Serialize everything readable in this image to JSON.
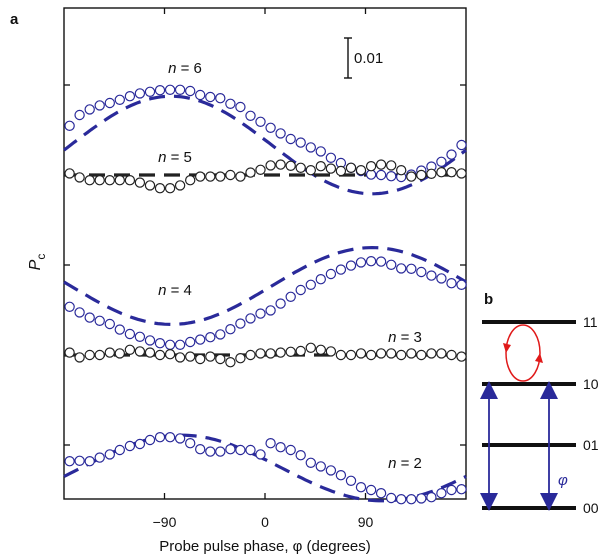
{
  "figure": {
    "panel_a_label": "a",
    "panel_b_label": "b"
  },
  "chart_data": [
    {
      "type": "scatter",
      "panel": "a",
      "xlabel": "Probe pulse phase, φ (degrees)",
      "ylabel": "Pc",
      "xlim": [
        -180,
        180
      ],
      "xticks": [
        -90,
        0,
        90
      ],
      "xtick_labels": [
        "−90",
        "0",
        "90"
      ],
      "scale_bar_label": "0.01",
      "grid": false,
      "colors": {
        "even_n": "#2a2a9a",
        "odd_n": "#222222"
      },
      "series": [
        {
          "name": "n = 6",
          "color": "#2a2a9a",
          "fit": "sinusoid",
          "fit_params": {
            "center": 0.8,
            "amp": 1.22,
            "peak_phase": -84
          },
          "x": [
            -175,
            -166,
            -157,
            -148,
            -139,
            -130,
            -121,
            -112,
            -103,
            -94,
            -85,
            -76,
            -67,
            -58,
            -49,
            -40,
            -31,
            -22,
            -13,
            -4,
            5,
            14,
            23,
            32,
            41,
            50,
            59,
            68,
            77,
            86,
            95,
            104,
            113,
            122,
            131,
            140,
            149,
            158,
            167,
            176
          ],
          "y": [
            1.28,
            1.55,
            1.69,
            1.79,
            1.85,
            1.93,
            2.02,
            2.09,
            2.13,
            2.17,
            2.18,
            2.18,
            2.15,
            2.05,
            2.0,
            1.97,
            1.83,
            1.75,
            1.53,
            1.38,
            1.23,
            1.09,
            0.95,
            0.86,
            0.74,
            0.64,
            0.48,
            0.35,
            0.23,
            0.15,
            0.06,
            0.05,
            0.02,
            0.0,
            0.06,
            0.16,
            0.26,
            0.38,
            0.56,
            0.8
          ]
        },
        {
          "name": "n = 5",
          "color": "#222222",
          "fit": "flat",
          "fit_params": {
            "center": 0.0
          },
          "x": [
            -175,
            -166,
            -157,
            -148,
            -139,
            -130,
            -121,
            -112,
            -103,
            -94,
            -85,
            -76,
            -67,
            -58,
            -49,
            -40,
            -31,
            -22,
            -13,
            -4,
            5,
            14,
            23,
            32,
            41,
            50,
            59,
            68,
            77,
            86,
            95,
            104,
            113,
            122,
            131,
            140,
            149,
            158,
            167,
            176
          ],
          "y": [
            0.04,
            -0.06,
            -0.13,
            -0.13,
            -0.13,
            -0.13,
            -0.13,
            -0.19,
            -0.26,
            -0.33,
            -0.33,
            -0.26,
            -0.13,
            -0.04,
            -0.04,
            -0.04,
            0.0,
            -0.04,
            0.06,
            0.13,
            0.24,
            0.26,
            0.23,
            0.18,
            0.12,
            0.22,
            0.16,
            0.1,
            0.18,
            0.12,
            0.22,
            0.26,
            0.24,
            0.12,
            -0.04,
            0.0,
            0.03,
            0.07,
            0.07,
            0.04
          ]
        },
        {
          "name": "n = 4",
          "color": "#2a2a9a",
          "fit": "sinusoid",
          "fit_params": {
            "center": 1.65,
            "amp": 0.96,
            "peak_phase": 96
          },
          "x": [
            -175,
            -166,
            -157,
            -148,
            -139,
            -130,
            -121,
            -112,
            -103,
            -94,
            -85,
            -76,
            -67,
            -58,
            -49,
            -40,
            -31,
            -22,
            -13,
            -4,
            5,
            14,
            23,
            32,
            41,
            50,
            59,
            68,
            77,
            86,
            95,
            104,
            113,
            122,
            131,
            140,
            149,
            158,
            167,
            176
          ],
          "y": [
            1.13,
            0.99,
            0.86,
            0.78,
            0.7,
            0.56,
            0.45,
            0.38,
            0.29,
            0.22,
            0.18,
            0.18,
            0.25,
            0.31,
            0.37,
            0.44,
            0.57,
            0.71,
            0.84,
            0.96,
            1.04,
            1.21,
            1.38,
            1.55,
            1.68,
            1.82,
            1.95,
            2.06,
            2.16,
            2.24,
            2.27,
            2.26,
            2.18,
            2.09,
            2.08,
            2.0,
            1.91,
            1.84,
            1.72,
            1.68
          ]
        },
        {
          "name": "n = 3",
          "color": "#222222",
          "fit": "flat",
          "fit_params": {
            "center": 0.0
          },
          "x": [
            -175,
            -166,
            -157,
            -148,
            -139,
            -130,
            -121,
            -112,
            -103,
            -94,
            -85,
            -76,
            -67,
            -58,
            -49,
            -40,
            -31,
            -22,
            -13,
            -4,
            5,
            14,
            23,
            32,
            41,
            50,
            59,
            68,
            77,
            86,
            95,
            104,
            113,
            122,
            131,
            140,
            149,
            158,
            167,
            176
          ],
          "y": [
            0.06,
            -0.06,
            0.0,
            0.0,
            0.06,
            0.04,
            0.13,
            0.09,
            0.06,
            0.0,
            0.02,
            -0.06,
            -0.04,
            -0.1,
            -0.04,
            -0.1,
            -0.18,
            -0.08,
            0.0,
            0.04,
            0.04,
            0.06,
            0.08,
            0.1,
            0.18,
            0.13,
            0.09,
            0.0,
            0.0,
            0.04,
            0.0,
            0.04,
            0.04,
            0.0,
            0.04,
            0.0,
            0.04,
            0.04,
            0.0,
            -0.04
          ]
        },
        {
          "name": "n = 2",
          "color": "#2a2a9a",
          "fit": "sinusoid",
          "fit_params": {
            "center": 0.78,
            "amp": 0.82,
            "peak_phase": -75
          },
          "x": [
            -175,
            -166,
            -157,
            -148,
            -139,
            -130,
            -121,
            -112,
            -103,
            -94,
            -85,
            -76,
            -67,
            -58,
            -49,
            -40,
            -31,
            -22,
            -13,
            -4,
            5,
            14,
            23,
            32,
            41,
            50,
            59,
            68,
            77,
            86,
            95,
            104,
            113,
            122,
            131,
            140,
            149,
            158,
            167,
            176
          ],
          "y": [
            0.95,
            0.96,
            0.95,
            1.04,
            1.12,
            1.23,
            1.33,
            1.38,
            1.48,
            1.55,
            1.55,
            1.52,
            1.4,
            1.25,
            1.19,
            1.19,
            1.25,
            1.23,
            1.23,
            1.12,
            1.4,
            1.3,
            1.23,
            1.1,
            0.91,
            0.82,
            0.72,
            0.6,
            0.46,
            0.3,
            0.23,
            0.15,
            0.03,
            0.0,
            0.0,
            0.02,
            0.05,
            0.15,
            0.23,
            0.25
          ]
        }
      ]
    },
    {
      "type": "diagram",
      "panel": "b",
      "levels": [
        "11",
        "10",
        "01",
        "00"
      ],
      "phase_label": "φ"
    }
  ]
}
